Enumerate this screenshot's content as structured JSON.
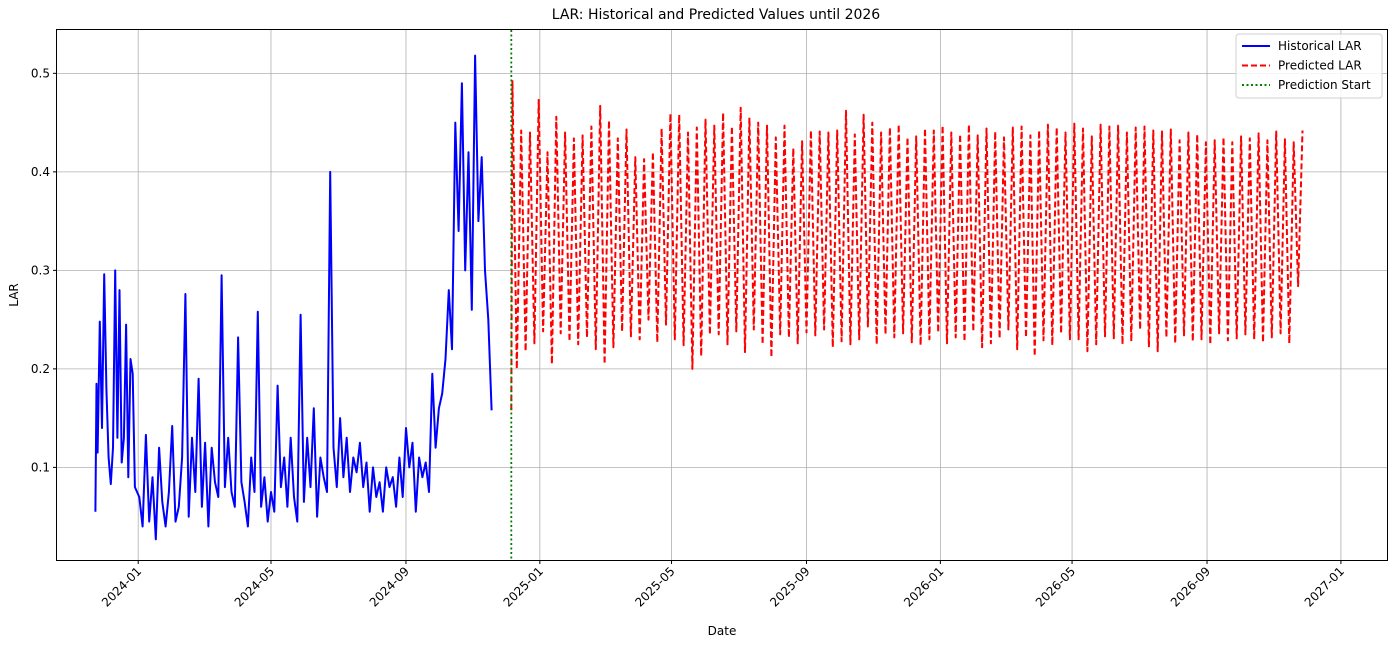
{
  "chart_data": {
    "type": "line",
    "title": "LAR: Historical and Predicted Values until 2026",
    "xlabel": "Date",
    "ylabel": "LAR",
    "x_axis_type": "date",
    "xlim": [
      "2023-10-19",
      "2027-02-12"
    ],
    "ylim": [
      0.006,
      0.544
    ],
    "x_ticks": [
      "2024-01",
      "2024-05",
      "2024-09",
      "2025-01",
      "2025-05",
      "2025-09",
      "2026-01",
      "2026-05",
      "2026-09",
      "2027-01"
    ],
    "y_ticks": [
      0.1,
      0.2,
      0.3,
      0.4,
      0.5
    ],
    "grid": true,
    "legend_position": "top-right",
    "legend": [
      "Historical LAR",
      "Predicted LAR",
      "Prediction Start"
    ],
    "prediction_start": "2024-12-06",
    "colors": {
      "historical": "#0000ff",
      "predicted": "#ff0000",
      "prediction_start": "#008000"
    },
    "series": [
      {
        "name": "Historical LAR",
        "style": "solid",
        "points": [
          [
            "2023-11-23",
            0.055
          ],
          [
            "2023-11-24",
            0.185
          ],
          [
            "2023-11-25",
            0.115
          ],
          [
            "2023-11-27",
            0.248
          ],
          [
            "2023-11-29",
            0.14
          ],
          [
            "2023-12-01",
            0.296
          ],
          [
            "2023-12-03",
            0.18
          ],
          [
            "2023-12-05",
            0.11
          ],
          [
            "2023-12-07",
            0.083
          ],
          [
            "2023-12-09",
            0.12
          ],
          [
            "2023-12-11",
            0.3
          ],
          [
            "2023-12-13",
            0.13
          ],
          [
            "2023-12-15",
            0.28
          ],
          [
            "2023-12-17",
            0.105
          ],
          [
            "2023-12-19",
            0.13
          ],
          [
            "2023-12-21",
            0.245
          ],
          [
            "2023-12-23",
            0.09
          ],
          [
            "2023-12-25",
            0.21
          ],
          [
            "2023-12-27",
            0.195
          ],
          [
            "2023-12-29",
            0.08
          ],
          [
            "2024-01-02",
            0.07
          ],
          [
            "2024-01-05",
            0.04
          ],
          [
            "2024-01-08",
            0.133
          ],
          [
            "2024-01-11",
            0.045
          ],
          [
            "2024-01-14",
            0.09
          ],
          [
            "2024-01-17",
            0.027
          ],
          [
            "2024-01-20",
            0.12
          ],
          [
            "2024-01-23",
            0.065
          ],
          [
            "2024-01-26",
            0.04
          ],
          [
            "2024-01-29",
            0.075
          ],
          [
            "2024-02-01",
            0.142
          ],
          [
            "2024-02-04",
            0.045
          ],
          [
            "2024-02-07",
            0.06
          ],
          [
            "2024-02-10",
            0.11
          ],
          [
            "2024-02-13",
            0.276
          ],
          [
            "2024-02-16",
            0.05
          ],
          [
            "2024-02-19",
            0.13
          ],
          [
            "2024-02-22",
            0.075
          ],
          [
            "2024-02-25",
            0.19
          ],
          [
            "2024-02-28",
            0.06
          ],
          [
            "2024-03-02",
            0.125
          ],
          [
            "2024-03-05",
            0.04
          ],
          [
            "2024-03-08",
            0.12
          ],
          [
            "2024-03-11",
            0.085
          ],
          [
            "2024-03-14",
            0.07
          ],
          [
            "2024-03-17",
            0.295
          ],
          [
            "2024-03-20",
            0.08
          ],
          [
            "2024-03-23",
            0.13
          ],
          [
            "2024-03-26",
            0.075
          ],
          [
            "2024-03-29",
            0.06
          ],
          [
            "2024-04-01",
            0.232
          ],
          [
            "2024-04-04",
            0.085
          ],
          [
            "2024-04-07",
            0.065
          ],
          [
            "2024-04-10",
            0.04
          ],
          [
            "2024-04-13",
            0.11
          ],
          [
            "2024-04-16",
            0.075
          ],
          [
            "2024-04-19",
            0.258
          ],
          [
            "2024-04-22",
            0.06
          ],
          [
            "2024-04-25",
            0.09
          ],
          [
            "2024-04-28",
            0.045
          ],
          [
            "2024-05-01",
            0.075
          ],
          [
            "2024-05-04",
            0.055
          ],
          [
            "2024-05-07",
            0.183
          ],
          [
            "2024-05-10",
            0.08
          ],
          [
            "2024-05-13",
            0.11
          ],
          [
            "2024-05-16",
            0.06
          ],
          [
            "2024-05-19",
            0.13
          ],
          [
            "2024-05-22",
            0.07
          ],
          [
            "2024-05-25",
            0.045
          ],
          [
            "2024-05-28",
            0.255
          ],
          [
            "2024-05-31",
            0.065
          ],
          [
            "2024-06-03",
            0.13
          ],
          [
            "2024-06-06",
            0.08
          ],
          [
            "2024-06-09",
            0.16
          ],
          [
            "2024-06-12",
            0.05
          ],
          [
            "2024-06-15",
            0.11
          ],
          [
            "2024-06-18",
            0.09
          ],
          [
            "2024-06-21",
            0.075
          ],
          [
            "2024-06-24",
            0.4
          ],
          [
            "2024-06-27",
            0.12
          ],
          [
            "2024-06-30",
            0.08
          ],
          [
            "2024-07-03",
            0.15
          ],
          [
            "2024-07-06",
            0.09
          ],
          [
            "2024-07-09",
            0.13
          ],
          [
            "2024-07-12",
            0.075
          ],
          [
            "2024-07-15",
            0.11
          ],
          [
            "2024-07-18",
            0.095
          ],
          [
            "2024-07-21",
            0.125
          ],
          [
            "2024-07-24",
            0.08
          ],
          [
            "2024-07-27",
            0.105
          ],
          [
            "2024-07-30",
            0.055
          ],
          [
            "2024-08-02",
            0.1
          ],
          [
            "2024-08-05",
            0.07
          ],
          [
            "2024-08-08",
            0.085
          ],
          [
            "2024-08-11",
            0.055
          ],
          [
            "2024-08-14",
            0.1
          ],
          [
            "2024-08-17",
            0.08
          ],
          [
            "2024-08-20",
            0.09
          ],
          [
            "2024-08-23",
            0.06
          ],
          [
            "2024-08-26",
            0.11
          ],
          [
            "2024-08-29",
            0.07
          ],
          [
            "2024-09-01",
            0.14
          ],
          [
            "2024-09-04",
            0.1
          ],
          [
            "2024-09-07",
            0.125
          ],
          [
            "2024-09-10",
            0.055
          ],
          [
            "2024-09-13",
            0.11
          ],
          [
            "2024-09-16",
            0.09
          ],
          [
            "2024-09-19",
            0.105
          ],
          [
            "2024-09-22",
            0.075
          ],
          [
            "2024-09-25",
            0.195
          ],
          [
            "2024-09-28",
            0.12
          ],
          [
            "2024-10-01",
            0.16
          ],
          [
            "2024-10-04",
            0.175
          ],
          [
            "2024-10-07",
            0.21
          ],
          [
            "2024-10-10",
            0.28
          ],
          [
            "2024-10-13",
            0.22
          ],
          [
            "2024-10-16",
            0.45
          ],
          [
            "2024-10-19",
            0.34
          ],
          [
            "2024-10-22",
            0.49
          ],
          [
            "2024-10-25",
            0.3
          ],
          [
            "2024-10-28",
            0.42
          ],
          [
            "2024-10-31",
            0.26
          ],
          [
            "2024-11-03",
            0.518
          ],
          [
            "2024-11-06",
            0.35
          ],
          [
            "2024-11-09",
            0.415
          ],
          [
            "2024-11-12",
            0.3
          ],
          [
            "2024-11-15",
            0.25
          ],
          [
            "2024-11-18",
            0.158
          ]
        ]
      },
      {
        "name": "Predicted LAR",
        "style": "dashed",
        "start": "2024-12-06",
        "end": "2026-12-31",
        "period_days": 8,
        "peaks": [
          0.493,
          0.442,
          0.44,
          0.473,
          0.42,
          0.456,
          0.44,
          0.434,
          0.437,
          0.446,
          0.467,
          0.452,
          0.434,
          0.443,
          0.415,
          0.413,
          0.42,
          0.444,
          0.459,
          0.458,
          0.44,
          0.445,
          0.453,
          0.447,
          0.46,
          0.446,
          0.465,
          0.455,
          0.45,
          0.447,
          0.435,
          0.447,
          0.424,
          0.431,
          0.442,
          0.441,
          0.44,
          0.442,
          0.462,
          0.438,
          0.458,
          0.45,
          0.44,
          0.445,
          0.448,
          0.435,
          0.436,
          0.444,
          0.442,
          0.447,
          0.44,
          0.438,
          0.448,
          0.437,
          0.444,
          0.441,
          0.435,
          0.445,
          0.446,
          0.437,
          0.442,
          0.448,
          0.445,
          0.44,
          0.449,
          0.444,
          0.436,
          0.448,
          0.446,
          0.447,
          0.44,
          0.445,
          0.446,
          0.442,
          0.441,
          0.443,
          0.432,
          0.44,
          0.438,
          0.43,
          0.432,
          0.435,
          0.43,
          0.436,
          0.434,
          0.439,
          0.432,
          0.441,
          0.433,
          0.43,
          0.442
        ],
        "troughs": [
          0.2,
          0.218,
          0.226,
          0.238,
          0.205,
          0.236,
          0.228,
          0.225,
          0.232,
          0.22,
          0.205,
          0.222,
          0.238,
          0.233,
          0.23,
          0.25,
          0.227,
          0.245,
          0.23,
          0.224,
          0.2,
          0.213,
          0.235,
          0.235,
          0.225,
          0.238,
          0.217,
          0.24,
          0.225,
          0.212,
          0.235,
          0.232,
          0.226,
          0.237,
          0.234,
          0.24,
          0.222,
          0.228,
          0.225,
          0.23,
          0.243,
          0.225,
          0.235,
          0.232,
          0.236,
          0.227,
          0.224,
          0.23,
          0.237,
          0.226,
          0.232,
          0.228,
          0.238,
          0.222,
          0.226,
          0.231,
          0.24,
          0.22,
          0.232,
          0.213,
          0.229,
          0.224,
          0.236,
          0.23,
          0.23,
          0.218,
          0.225,
          0.233,
          0.231,
          0.225,
          0.228,
          0.24,
          0.222,
          0.218,
          0.232,
          0.226,
          0.234,
          0.228,
          0.23,
          0.225,
          0.236,
          0.229,
          0.231,
          0.235,
          0.23,
          0.227,
          0.232,
          0.236,
          0.226,
          0.284
        ]
      }
    ]
  }
}
